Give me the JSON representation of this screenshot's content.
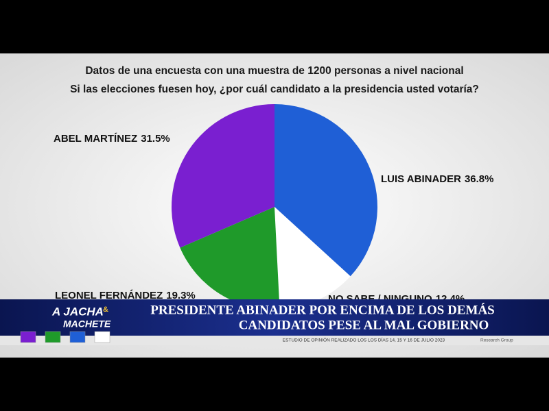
{
  "chart_data": {
    "type": "pie",
    "subtitle": [
      "Datos de una encuesta con una muestra de 1200 personas a nivel nacional",
      "Si las elecciones fuesen hoy, ¿por cuál candidato a la presidencia usted votaría?"
    ],
    "categories": [
      "LUIS ABINADER",
      "NO SABE / NINGUNO",
      "LEONEL FERNÁNDEZ",
      "ABEL MARTÍNEZ"
    ],
    "values": [
      36.8,
      12.4,
      19.3,
      31.5
    ],
    "value_labels": [
      "36.8%",
      "12.4%",
      "19.3%",
      "31.5%"
    ],
    "colors": [
      "#1f5fd6",
      "#ffffff",
      "#1f9a2a",
      "#7a1fd0"
    ]
  },
  "overlay": {
    "logo": [
      "A JACHA",
      "&",
      "MACHETE"
    ],
    "headline": [
      "PRESIDENTE ABINADER POR ENCIMA DE LOS DEMÁS",
      "CANDIDATOS PESE AL MAL GOBIERNO"
    ],
    "footnote": "ESTUDIO DE OPINIÓN REALIZADO LOS LOS DÍAS 14, 15 Y 16 DE JULIO 2023",
    "source": "Research Group"
  }
}
